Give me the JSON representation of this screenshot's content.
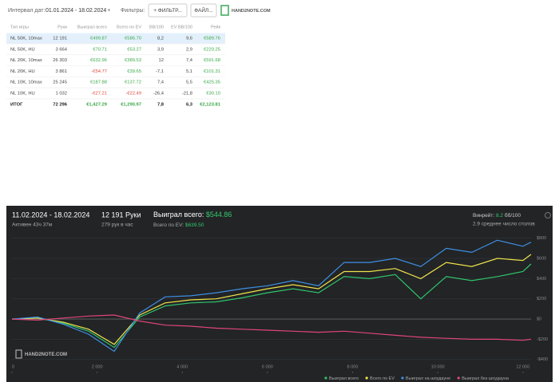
{
  "header": {
    "date_label": "Интервал дат:",
    "date_range": "01.01.2024 - 18.02.2024",
    "filters_label": "Фильтры:",
    "filter_button": "+ ФИЛЬТР...",
    "file_button": "ФАЙЛ...",
    "logo": "HAND2NOTE.COM"
  },
  "table": {
    "columns": [
      "Тип игры",
      "Руки",
      "Выиграл всего",
      "Всего по EV",
      "BB/100",
      "EV BB/100",
      "Рейк"
    ],
    "rows": [
      [
        "NL 50K, 10max",
        "12 191",
        "€499.87",
        "€586.70",
        "8,2",
        "9,6",
        "€589.76"
      ],
      [
        "NL 50K, HU",
        "3 664",
        "€70.71",
        "€53.27",
        "3,9",
        "2,9",
        "€220.25"
      ],
      [
        "NL 20K, 10max",
        "26 303",
        "€632.96",
        "€389.53",
        "12",
        "7,4",
        "€591.68"
      ],
      [
        "NL 20K, HU",
        "3 861",
        "-€54.77",
        "€39.65",
        "-7,1",
        "5,1",
        "€101.31"
      ],
      [
        "NL 10K, 10max",
        "25 245",
        "€187.88",
        "€137.72",
        "7,4",
        "5,5",
        "€425.35"
      ],
      [
        "NL 10K, HU",
        "1 032",
        "-€27.21",
        "-€22.49",
        "-26,4",
        "-21,8",
        "€30.10"
      ]
    ],
    "total": [
      "ИТОГ",
      "72 296",
      "€1,427.29",
      "€1,290.97",
      "7,8",
      "6,3",
      "€2,123.81"
    ]
  },
  "chart_panel": {
    "date_range": "11.02.2024 - 18.02.2024",
    "active": "Активен 43ч 37м",
    "hands": "12 191 Руки",
    "hands_per_hour": "279 рук в час",
    "won_label": "Выиграл всего:",
    "won_value": "$544.86",
    "ev_label": "Всего по EV:",
    "ev_value": "$639.50",
    "winrate_label": "Винрейт:",
    "winrate_value": "8.2",
    "winrate_unit": "бб/100",
    "avg_tables": "2.9 среднее число столов",
    "watermark": "HAND2NOTE.COM",
    "chart": {
      "type": "line",
      "x": [
        0,
        600,
        1200,
        1800,
        2400,
        3000,
        3600,
        4200,
        4800,
        5400,
        6000,
        6600,
        7200,
        7800,
        8400,
        9000,
        9600,
        10200,
        10800,
        11400,
        12000,
        12191
      ],
      "xlim": [
        0,
        12191
      ],
      "xticks": [
        0,
        {
          "value": 2000,
          "label": "2 000"
        },
        {
          "value": 4000,
          "label": "4 000"
        },
        {
          "value": 6000,
          "label": "6 000"
        },
        {
          "value": 8000,
          "label": "8 000"
        },
        {
          "value": 10000,
          "label": "10 000"
        },
        {
          "value": 12000,
          "label": "12 000"
        }
      ],
      "ylim": [
        -520,
        900
      ],
      "yticks": [
        {
          "value": -400,
          "label": "-$400"
        },
        {
          "value": -200,
          "label": "-$200"
        },
        {
          "value": 0,
          "label": "$0"
        },
        {
          "value": 200,
          "label": "$200"
        },
        {
          "value": 400,
          "label": "$400"
        },
        {
          "value": 600,
          "label": "$600"
        },
        {
          "value": 800,
          "label": "$800"
        }
      ],
      "grid": true,
      "series": [
        {
          "name": "Выиграл всего",
          "color": "#2fc46a",
          "values": [
            0,
            10,
            -40,
            -120,
            -280,
            20,
            130,
            160,
            170,
            210,
            260,
            300,
            260,
            420,
            400,
            440,
            200,
            420,
            380,
            420,
            470,
            545
          ]
        },
        {
          "name": "Всего по EV",
          "color": "#efe34a",
          "values": [
            0,
            10,
            -30,
            -100,
            -250,
            40,
            160,
            190,
            200,
            250,
            300,
            340,
            300,
            470,
            470,
            500,
            400,
            560,
            520,
            600,
            580,
            640
          ]
        },
        {
          "name": "Выиграл на шоудауне",
          "color": "#3f8fe3",
          "values": [
            0,
            20,
            -50,
            -150,
            -320,
            60,
            220,
            230,
            260,
            300,
            330,
            380,
            330,
            560,
            560,
            600,
            520,
            700,
            660,
            780,
            720,
            760
          ]
        },
        {
          "name": "Выиграл без шоудауна",
          "color": "#e0457b",
          "values": [
            0,
            -10,
            10,
            30,
            40,
            -20,
            -60,
            -70,
            -90,
            -100,
            -110,
            -120,
            -130,
            -120,
            -140,
            -160,
            -180,
            -190,
            -200,
            -200,
            -210,
            -200
          ]
        }
      ]
    }
  }
}
